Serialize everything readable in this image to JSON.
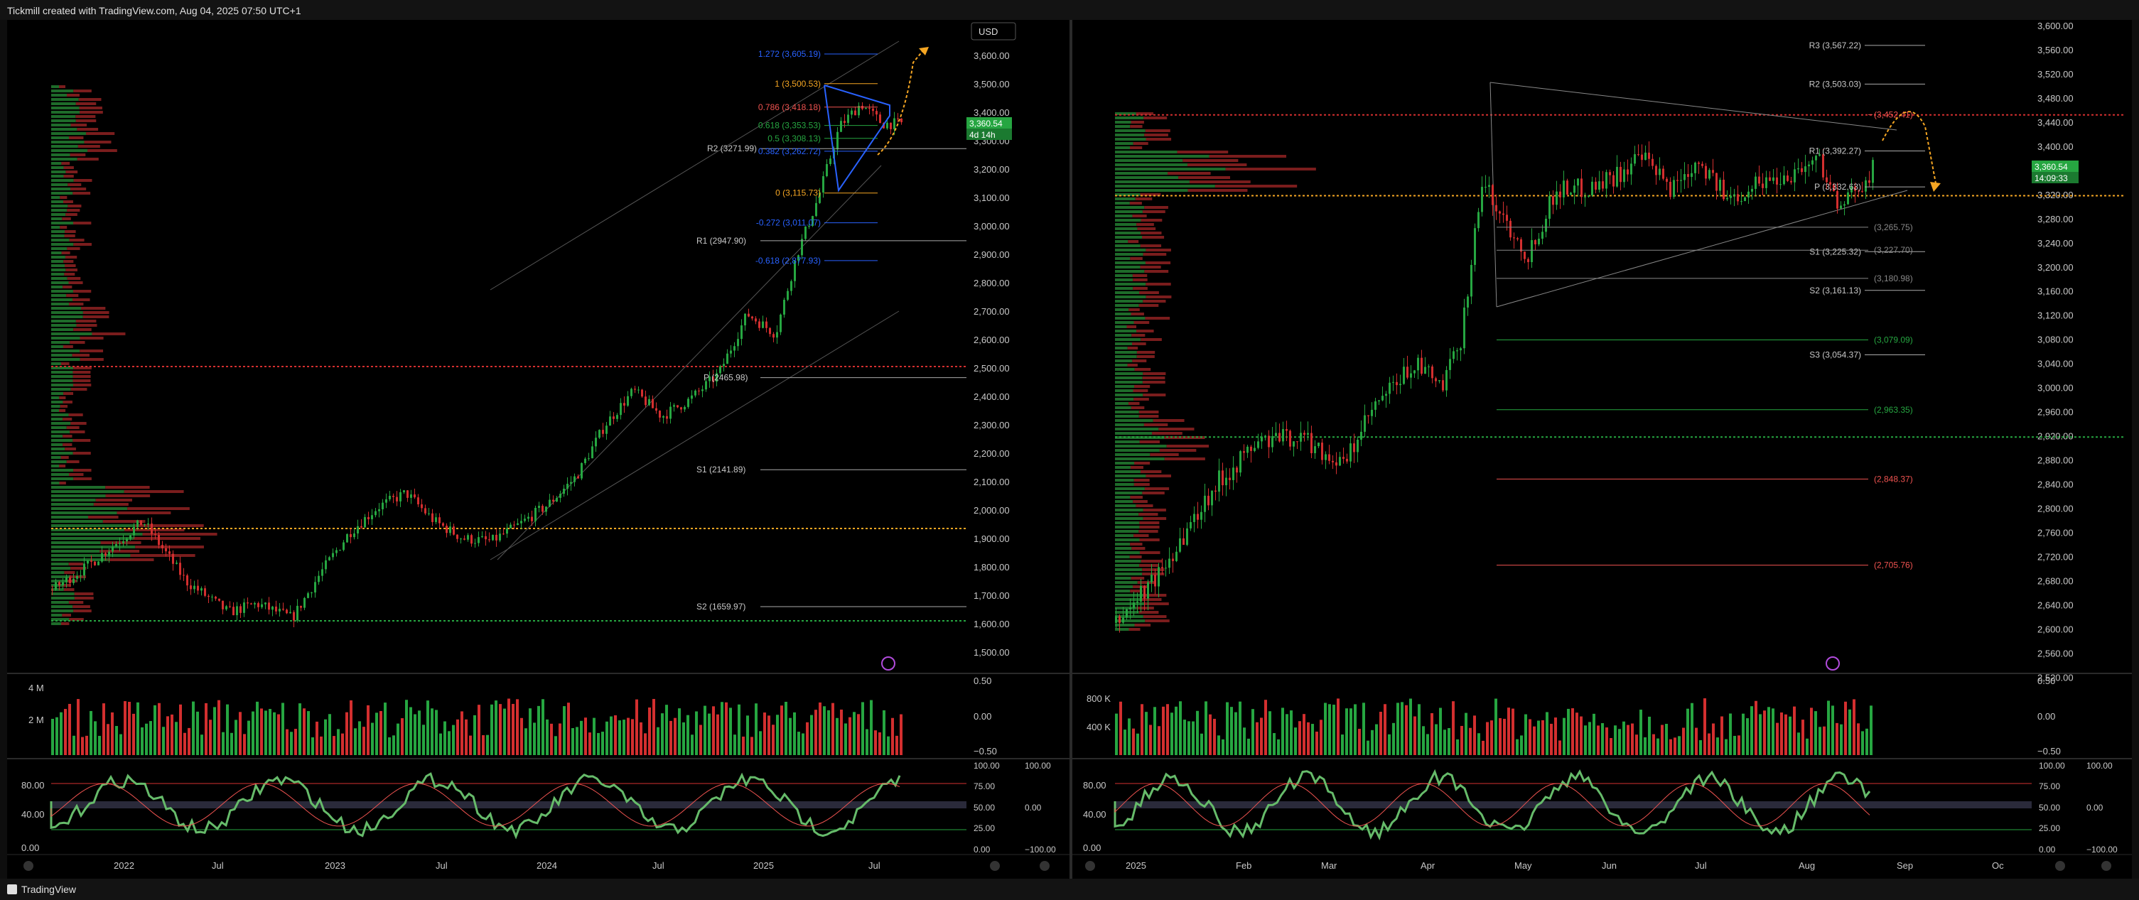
{
  "header": {
    "title": "Tickmill created with TradingView.com, Aug 04, 2025 07:50 UTC+1"
  },
  "footer": {
    "brand": "TradingView"
  },
  "currency_button": "USD",
  "left": {
    "price_axis": [
      "3,600.00",
      "3,500.00",
      "3,400.00",
      "3,300.00",
      "3,200.00",
      "3,100.00",
      "3,000.00",
      "2,900.00",
      "2,800.00",
      "2,700.00",
      "2,600.00",
      "2,500.00",
      "2,400.00",
      "2,300.00",
      "2,200.00",
      "2,100.00",
      "2,000.00",
      "1,900.00",
      "1,800.00",
      "1,700.00",
      "1,600.00",
      "1,500.00"
    ],
    "price_badge": "3,360.54",
    "countdown_badge": "4d 14h",
    "time_axis": [
      "2022",
      "Jul",
      "2023",
      "Jul",
      "2024",
      "Jul",
      "2025",
      "Jul"
    ],
    "volume_axis": [
      "4 M",
      "2 M"
    ],
    "volume_scale": [
      "0.50",
      "0.00",
      "−0.50"
    ],
    "osc_left": [
      "80.00",
      "40.00",
      "0.00"
    ],
    "osc_right_a": [
      "100.00",
      "75.00",
      "50.00",
      "25.00",
      "0.00"
    ],
    "osc_right_b": [
      "100.00",
      "0.00",
      "−100.00"
    ],
    "fib_labels": {
      "f1272": "1.272 (3,605.19)",
      "f1": "1 (3,500.53)",
      "f786": "0.786 (3,418.18)",
      "f618": "0.618 (3,353.53)",
      "f5": "0.5 (3,308.13)",
      "f382": "0.382 (3,262.72)",
      "f0": "0 (3,115.73)",
      "fm272": "-0.272 (3,011.07)",
      "fm618": "-0.618 (2,877.93)"
    },
    "pivots": {
      "r2": "R2 (3271.99)",
      "r1": "R1 (2947.90)",
      "p": "P (2465.98)",
      "s1": "S1 (2141.89)",
      "s2": "S2 (1659.97)"
    }
  },
  "right": {
    "price_axis": [
      "3,600.00",
      "3,560.00",
      "3,520.00",
      "3,480.00",
      "3,440.00",
      "3,400.00",
      "3,360.00",
      "3,320.00",
      "3,280.00",
      "3,240.00",
      "3,200.00",
      "3,160.00",
      "3,120.00",
      "3,080.00",
      "3,040.00",
      "3,000.00",
      "2,960.00",
      "2,920.00",
      "2,880.00",
      "2,840.00",
      "2,800.00",
      "2,760.00",
      "2,720.00",
      "2,680.00",
      "2,640.00",
      "2,600.00",
      "2,560.00",
      "2,520.00"
    ],
    "price_badge": "3,360.54",
    "countdown_badge": "14:09:33",
    "time_axis": [
      "2025",
      "Feb",
      "Mar",
      "Apr",
      "May",
      "Jun",
      "Jul",
      "Aug",
      "Sep",
      "Oc"
    ],
    "volume_axis": [
      "800 K",
      "400 K"
    ],
    "volume_scale": [
      "0.50",
      "0.00",
      "−0.50"
    ],
    "osc_left": [
      "80.00",
      "40.00",
      "0.00"
    ],
    "osc_right_a": [
      "100.00",
      "75.00",
      "50.00",
      "25.00",
      "0.00"
    ],
    "osc_right_b": [
      "100.00",
      "0.00",
      "−100.00"
    ],
    "pivots": {
      "r3": "R3 (3,567.22)",
      "r2": "R2 (3,503.03)",
      "r1": "R1 (3,392.27)",
      "p": "P (3,332.63)",
      "s1": "S1 (3,225.32)",
      "s2": "S2 (3,161.13)",
      "s3": "S3 (3,054.37)"
    },
    "levels": {
      "l3452": "(3,452.41)",
      "l3265": "(3,265.75)",
      "l3227": "(3,227.70)",
      "l3180": "(3,180.98)",
      "l3079": "(3,079.09)",
      "l2963": "(2,963.35)",
      "l2848": "(2,848.37)",
      "l2705": "(2,705.76)"
    }
  },
  "colors": {
    "up": "#26a641",
    "down": "#d32f2f",
    "accent_orange": "#f5a623",
    "fib_blue": "#2962ff"
  }
}
